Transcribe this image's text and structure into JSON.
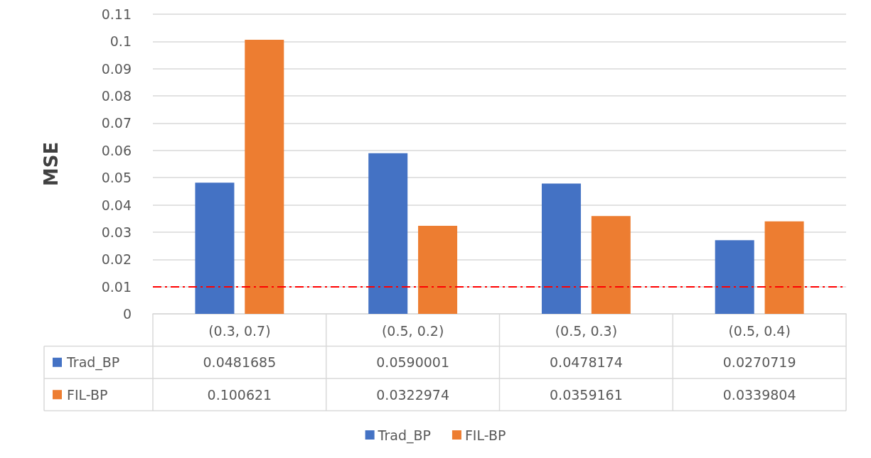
{
  "chart_data": {
    "type": "bar",
    "ylabel": "MSE",
    "categories": [
      "(0.3, 0.7)",
      "(0.5, 0.2)",
      "(0.5, 0.3)",
      "(0.5, 0.4)"
    ],
    "series": [
      {
        "name": "Trad_BP",
        "color": "#4472c4",
        "values": [
          0.0481685,
          0.0590001,
          0.0478174,
          0.0270719
        ]
      },
      {
        "name": "FIL-BP",
        "color": "#ed7d31",
        "values": [
          0.100621,
          0.0322974,
          0.0359161,
          0.0339804
        ]
      }
    ],
    "ylim": [
      0,
      0.11
    ],
    "yticks": [
      0,
      0.01,
      0.02,
      0.03,
      0.04,
      0.05,
      0.06,
      0.07,
      0.08,
      0.09,
      0.1,
      0.11
    ],
    "grid": "y",
    "legend": "bottom",
    "data_labels": true,
    "ref_lines": [
      {
        "axis": "y",
        "value": 0.01,
        "color": "#ff0000",
        "line_style": "dashed"
      }
    ]
  }
}
